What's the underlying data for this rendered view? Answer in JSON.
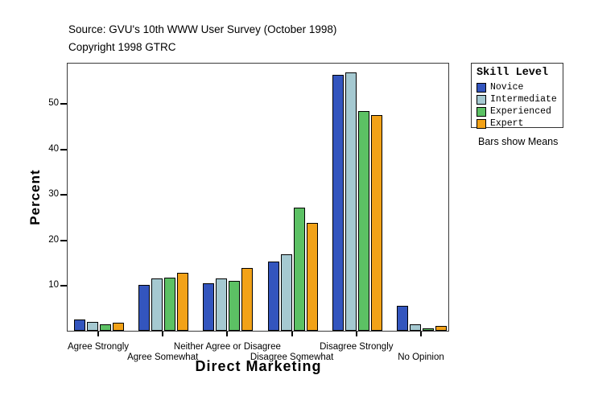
{
  "header": {
    "source": "Source: GVU's 10th WWW User Survey (October 1998)",
    "copyright": "Copyright 1998 GTRC"
  },
  "chart_data": {
    "type": "bar",
    "title": "",
    "xlabel": "Direct Marketing",
    "ylabel": "Percent",
    "categories": [
      "Agree Strongly",
      "Agree Somewhat",
      "Neither Agree or Disagree",
      "Disagree Somewhat",
      "Disagree Strongly",
      "No Opinion"
    ],
    "series": [
      {
        "name": "Novice",
        "color": "#3355BE",
        "values": [
          2.4,
          10.0,
          10.5,
          15.2,
          56.2,
          5.5
        ]
      },
      {
        "name": "Intermediate",
        "color": "#A5C9D1",
        "values": [
          1.9,
          11.5,
          11.5,
          16.8,
          56.7,
          1.5
        ]
      },
      {
        "name": "Experienced",
        "color": "#5CC164",
        "values": [
          1.4,
          11.7,
          10.9,
          27.1,
          48.2,
          0.5
        ]
      },
      {
        "name": "Expert",
        "color": "#F2A218",
        "values": [
          1.7,
          12.8,
          13.8,
          23.7,
          47.4,
          1.0
        ]
      }
    ],
    "yticks": [
      10,
      20,
      30,
      40,
      50
    ],
    "ylim": [
      0,
      59
    ],
    "grid": false,
    "legend": {
      "title": "Skill Level",
      "note": "Bars show Means",
      "position": "right"
    }
  }
}
